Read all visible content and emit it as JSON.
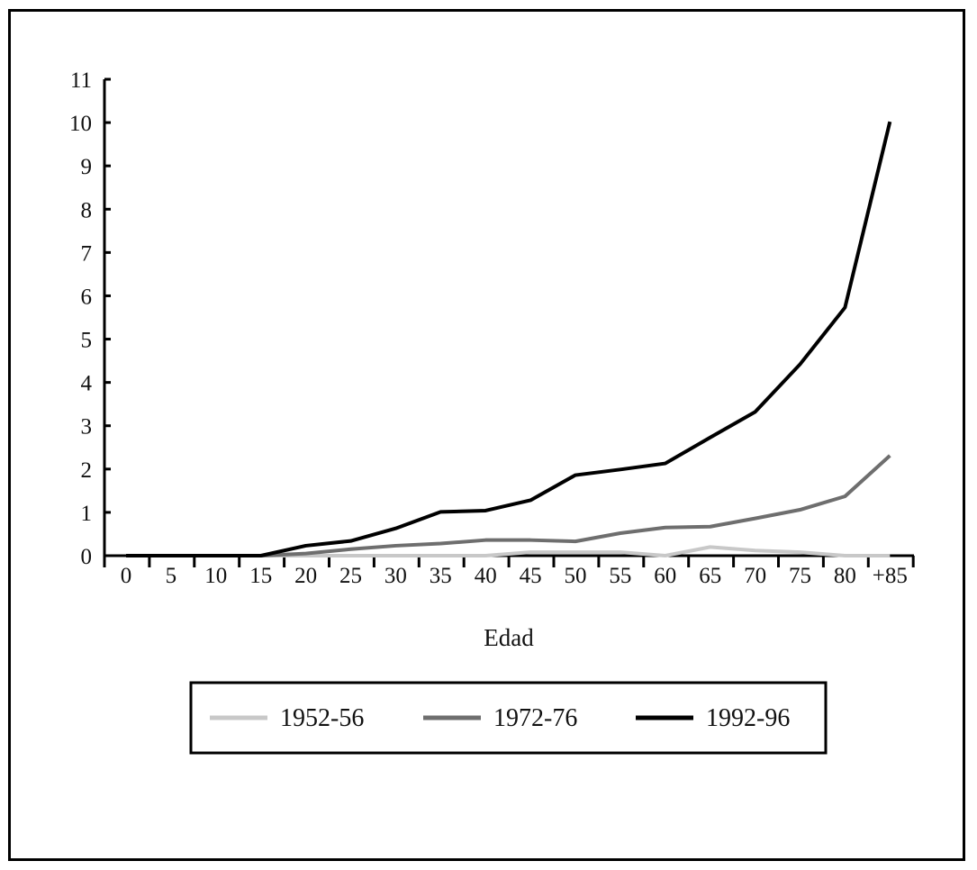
{
  "chart_data": {
    "type": "line",
    "xlabel": "Edad",
    "ylabel": "",
    "title": "",
    "categories": [
      "0",
      "5",
      "10",
      "15",
      "20",
      "25",
      "30",
      "35",
      "40",
      "45",
      "50",
      "55",
      "60",
      "65",
      "70",
      "75",
      "80",
      "+85"
    ],
    "ylim": [
      0,
      11
    ],
    "yticks": [
      0,
      1,
      2,
      3,
      4,
      5,
      6,
      7,
      8,
      9,
      10,
      11
    ],
    "grid": false,
    "legend_position": "bottom",
    "series": [
      {
        "name": "1952-56",
        "color": "#c8c8c8",
        "values": [
          0,
          0,
          0,
          0,
          0,
          0,
          0,
          0,
          0,
          0.08,
          0.08,
          0.08,
          0,
          0.2,
          0.12,
          0.08,
          0,
          0
        ]
      },
      {
        "name": "1972-76",
        "color": "#6e6e6e",
        "values": [
          0,
          0,
          0,
          0,
          0.05,
          0.15,
          0.23,
          0.28,
          0.36,
          0.36,
          0.33,
          0.52,
          0.65,
          0.67,
          0.86,
          1.06,
          1.37,
          2.31
        ]
      },
      {
        "name": "1992-96",
        "color": "#000000",
        "values": [
          0,
          0,
          0,
          0,
          0.23,
          0.34,
          0.63,
          1.01,
          1.04,
          1.28,
          1.86,
          1.99,
          2.13,
          2.73,
          3.32,
          4.42,
          5.73,
          10.02
        ]
      }
    ]
  }
}
